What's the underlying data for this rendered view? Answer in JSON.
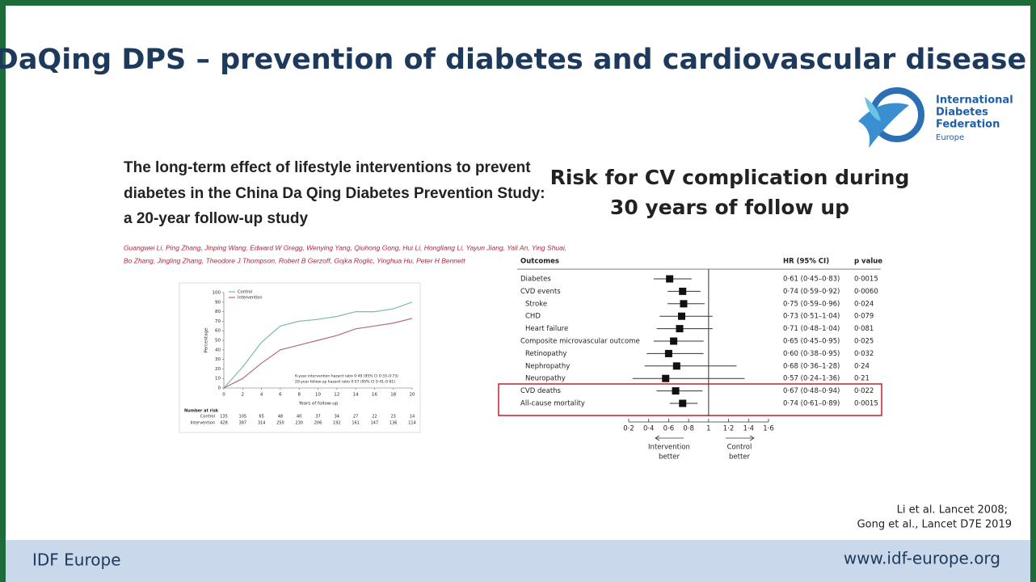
{
  "slide": {
    "title": "DaQing DPS – prevention of diabetes and cardiovascular disease",
    "references": [
      "Li et al. Lancet  2008;",
      "Gong et al., Lancet D7E 2019"
    ],
    "footer_left": "IDF Europe",
    "footer_right": "www.idf-europe.org"
  },
  "logo": {
    "lines": [
      "International",
      "Diabetes",
      "Federation"
    ],
    "sub": "Europe"
  },
  "paper": {
    "title_lines": [
      "The long-term effect of lifestyle interventions to prevent",
      "diabetes in the China Da Qing Diabetes Prevention Study:",
      "a 20-year follow-up study"
    ],
    "author_lines": [
      "Guangwei Li, Ping Zhang, Jinping Wang, Edward W Gregg, Wenying Yang, Qiuhong Gong, Hui Li, Hongliang Li, Yayun Jiang, Yali An, Ying Shuai,",
      "Bo Zhang, Jingling Zhang, Theodore J Thompson, Robert B Gerzoff, Gojka Roglic, Yinghua Hu, Peter H Bennett"
    ]
  },
  "incidence_chart": {
    "type": "line",
    "y_label": "Percentage",
    "x_label": "Years of follow-up",
    "x": [
      0,
      2,
      4,
      6,
      8,
      10,
      12,
      14,
      16,
      18,
      20
    ],
    "series": [
      {
        "name": "Control",
        "color": "#7fb8b0",
        "values": [
          0,
          22,
          48,
          65,
          70,
          72,
          75,
          80,
          80,
          83,
          90
        ]
      },
      {
        "name": "Intervention",
        "color": "#b56a7a",
        "values": [
          0,
          10,
          26,
          40,
          45,
          50,
          55,
          62,
          65,
          68,
          73
        ]
      }
    ],
    "xlim": [
      0,
      20
    ],
    "ylim": [
      0,
      100
    ],
    "xticks": [
      0,
      2,
      4,
      6,
      8,
      10,
      12,
      14,
      16,
      18,
      20
    ],
    "yticks": [
      0,
      10,
      20,
      30,
      40,
      50,
      60,
      70,
      80,
      90,
      100
    ],
    "annotations": [
      "6-year intervention hazard ratio 0·49 (95% CI 0·33–0·73)",
      "20-year follow-up hazard ratio 0·57 (95% CI 0·41–0·81)"
    ],
    "risk_title": "Number at risk",
    "risk_rows": [
      {
        "name": "Control",
        "values": [
          "135",
          "105",
          "65",
          "48",
          "40",
          "37",
          "34",
          "27",
          "22",
          "23",
          "14"
        ]
      },
      {
        "name": "Intervention",
        "values": [
          "428",
          "387",
          "314",
          "250",
          "230",
          "206",
          "192",
          "161",
          "147",
          "136",
          "114"
        ]
      }
    ]
  },
  "forest_plot": {
    "type": "forest",
    "heading_lines": [
      "Risk for CV complication during",
      "30 years of follow up"
    ],
    "columns": [
      "Outcomes",
      "HR (95% CI)",
      "p value"
    ],
    "rows": [
      {
        "label": "Diabetes",
        "indent": false,
        "hr_text": "0·61 (0·45–0·83)",
        "p": "0·0015",
        "hr": 0.61,
        "lo": 0.45,
        "hi": 0.83
      },
      {
        "label": "CVD events",
        "indent": false,
        "hr_text": "0·74 (0·59–0·92)",
        "p": "0·0060",
        "hr": 0.74,
        "lo": 0.59,
        "hi": 0.92
      },
      {
        "label": "Stroke",
        "indent": true,
        "hr_text": "0·75 (0·59–0·96)",
        "p": "0·024",
        "hr": 0.75,
        "lo": 0.59,
        "hi": 0.96
      },
      {
        "label": "CHD",
        "indent": true,
        "hr_text": "0·73 (0·51–1·04)",
        "p": "0·079",
        "hr": 0.73,
        "lo": 0.51,
        "hi": 1.04
      },
      {
        "label": "Heart failure",
        "indent": true,
        "hr_text": "0·71 (0·48–1·04)",
        "p": "0·081",
        "hr": 0.71,
        "lo": 0.48,
        "hi": 1.04
      },
      {
        "label": "Composite microvascular outcome",
        "indent": false,
        "hr_text": "0·65 (0·45–0·95)",
        "p": "0·025",
        "hr": 0.65,
        "lo": 0.45,
        "hi": 0.95
      },
      {
        "label": "Retinopathy",
        "indent": true,
        "hr_text": "0·60 (0·38–0·95)",
        "p": "0·032",
        "hr": 0.6,
        "lo": 0.38,
        "hi": 0.95
      },
      {
        "label": "Nephropathy",
        "indent": true,
        "hr_text": "0·68 (0·36–1·28)",
        "p": "0·24",
        "hr": 0.68,
        "lo": 0.36,
        "hi": 1.28
      },
      {
        "label": "Neuropathy",
        "indent": true,
        "hr_text": "0·57 (0·24–1·36)",
        "p": "0·21",
        "hr": 0.57,
        "lo": 0.24,
        "hi": 1.36
      },
      {
        "label": "CVD deaths",
        "indent": false,
        "hr_text": "0·67 (0·48–0·94)",
        "p": "0·022",
        "hr": 0.67,
        "lo": 0.48,
        "hi": 0.94
      },
      {
        "label": "All-cause mortality",
        "indent": false,
        "hr_text": "0·74 (0·61–0·89)",
        "p": "0·0015",
        "hr": 0.74,
        "lo": 0.61,
        "hi": 0.89
      }
    ],
    "xlim": [
      0.2,
      1.6
    ],
    "xticks": [
      {
        "value": 0.2,
        "label": "0·2"
      },
      {
        "value": 0.4,
        "label": "0·4"
      },
      {
        "value": 0.6,
        "label": "0·6"
      },
      {
        "value": 0.8,
        "label": "0·8"
      },
      1,
      {
        "value": 1.2,
        "label": "1·2"
      },
      {
        "value": 1.4,
        "label": "1·4"
      },
      {
        "value": 1.6,
        "label": "1·6"
      }
    ],
    "left_note": [
      "Intervention",
      "better"
    ],
    "right_note": [
      "Control",
      "better"
    ]
  }
}
